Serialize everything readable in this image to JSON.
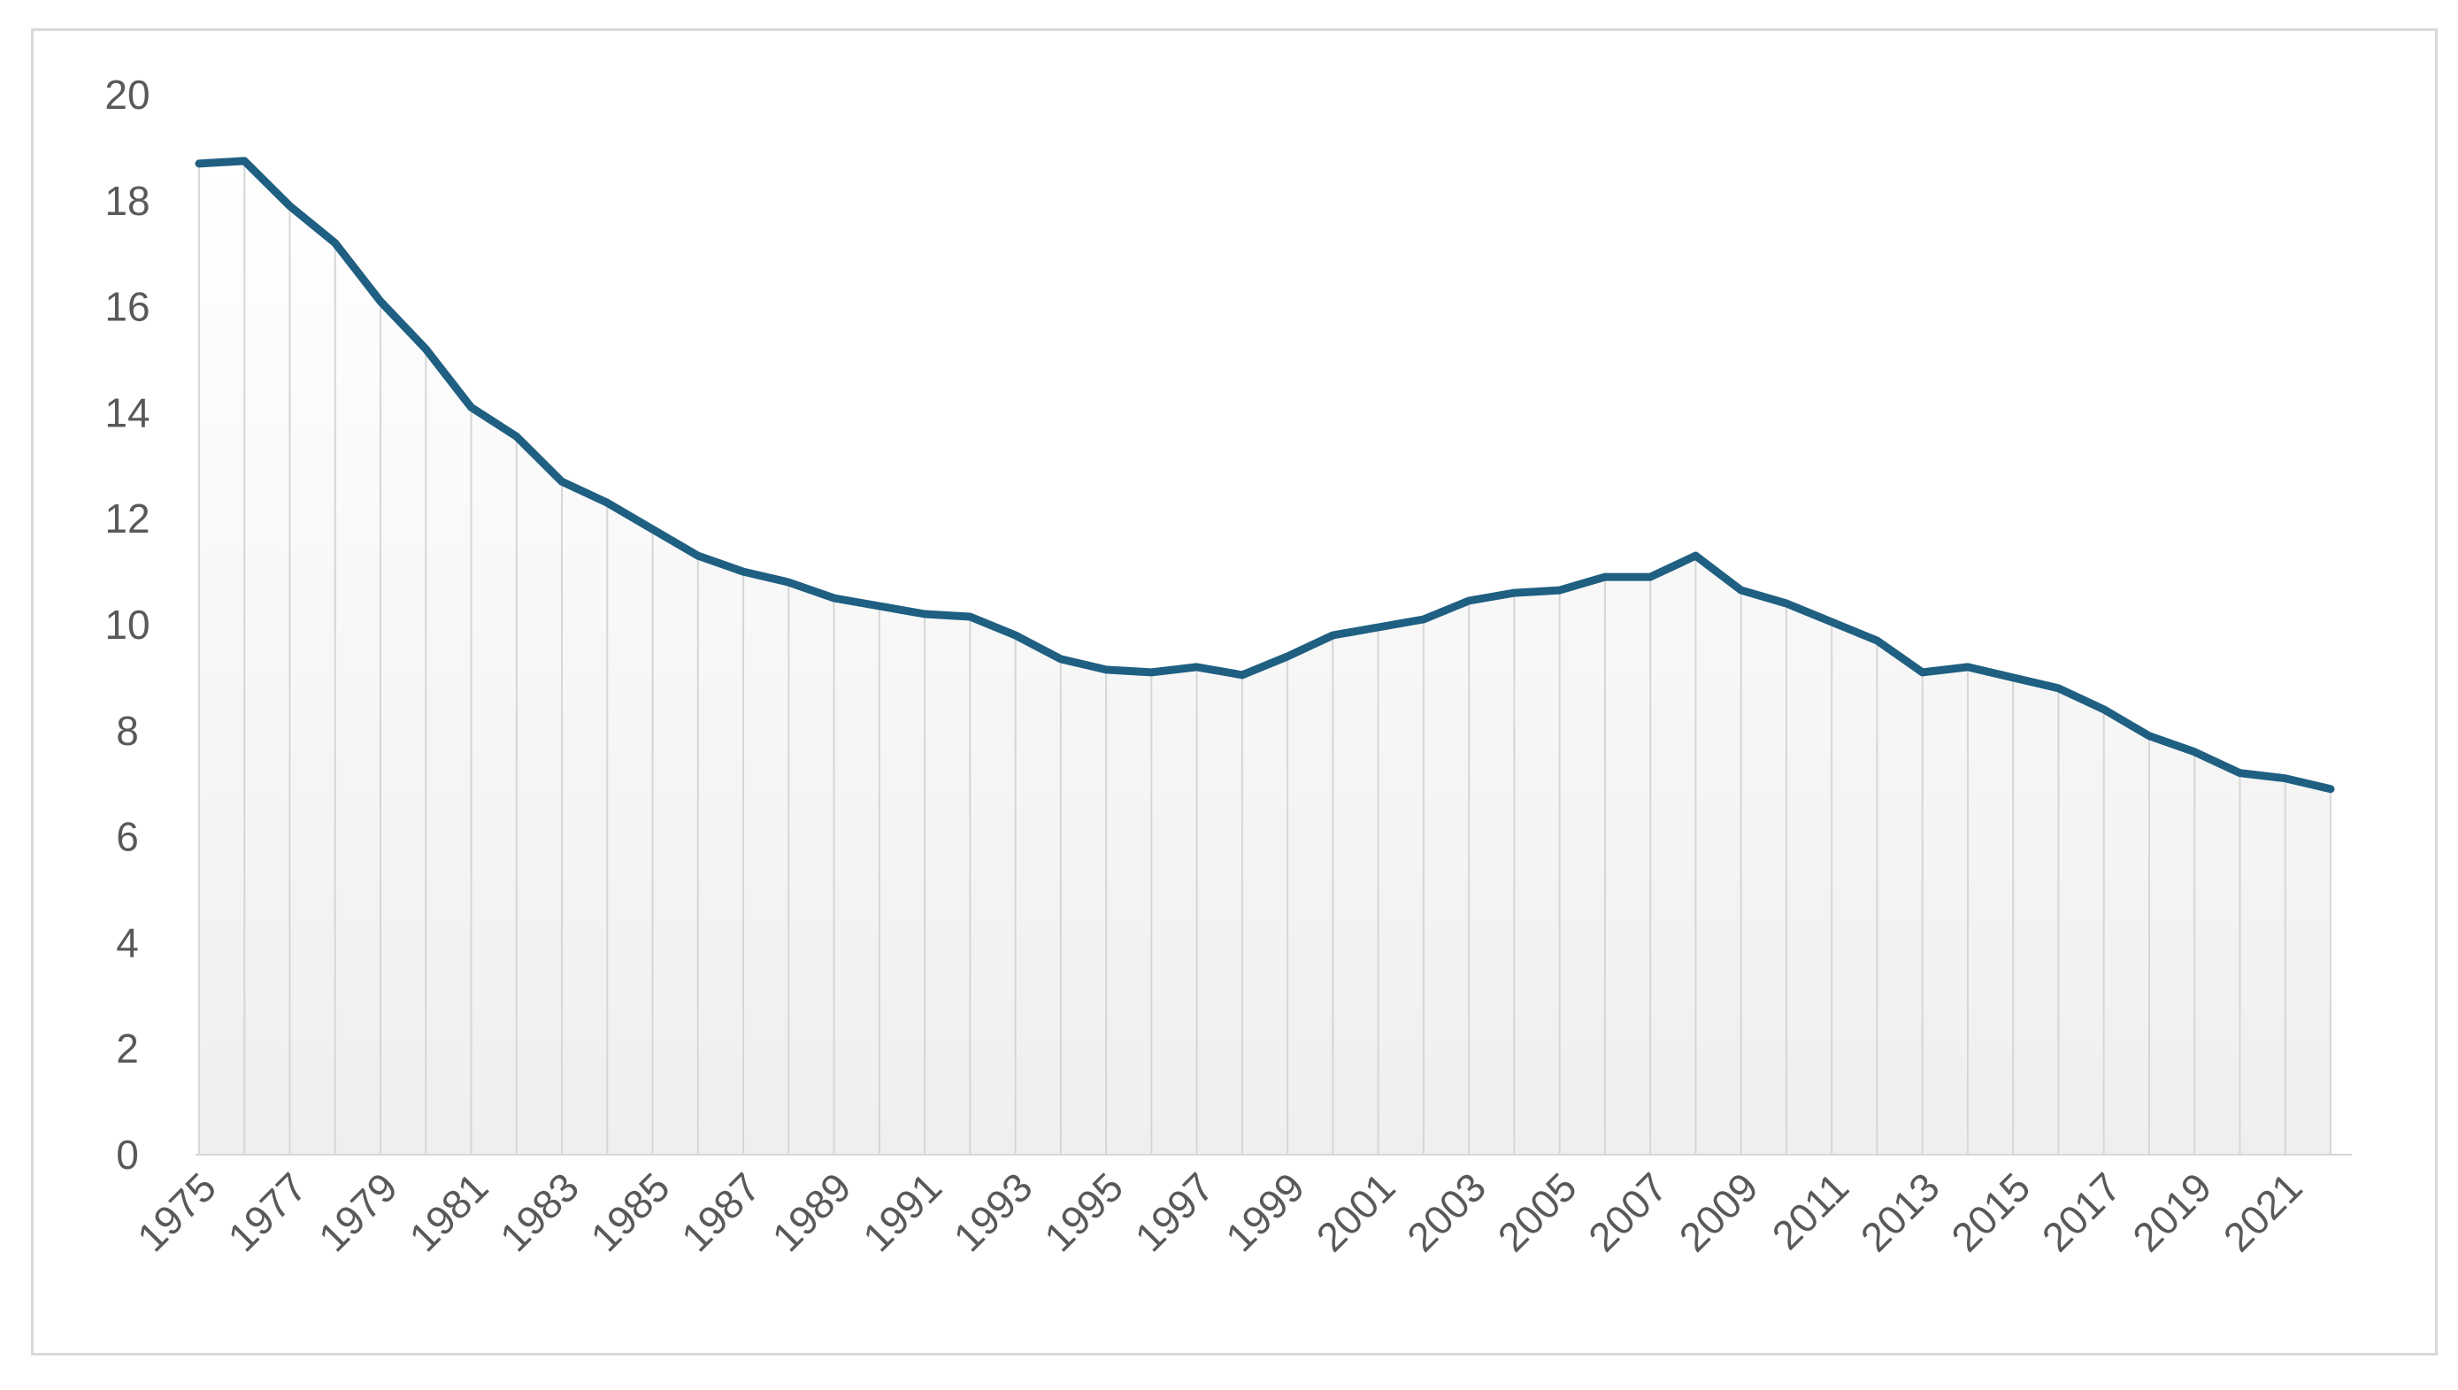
{
  "chart_data": {
    "type": "area",
    "title": "",
    "xlabel": "",
    "ylabel": "",
    "x": [
      1975,
      1976,
      1977,
      1978,
      1979,
      1980,
      1981,
      1982,
      1983,
      1984,
      1985,
      1986,
      1987,
      1988,
      1989,
      1990,
      1991,
      1992,
      1993,
      1994,
      1995,
      1996,
      1997,
      1998,
      1999,
      2000,
      2001,
      2002,
      2003,
      2004,
      2005,
      2006,
      2007,
      2008,
      2009,
      2010,
      2011,
      2012,
      2013,
      2014,
      2015,
      2016,
      2017,
      2018,
      2019,
      2020,
      2021,
      2022
    ],
    "x_tick_labels": [
      "1975",
      "1977",
      "1979",
      "1981",
      "1983",
      "1985",
      "1987",
      "1989",
      "1991",
      "1993",
      "1995",
      "1997",
      "1999",
      "2001",
      "2003",
      "2005",
      "2007",
      "2009",
      "2011",
      "2013",
      "2015",
      "2017",
      "2019",
      "2021"
    ],
    "y_ticks": [
      "0",
      "2",
      "4",
      "6",
      "8",
      "10",
      "12",
      "14",
      "16",
      "18",
      "20"
    ],
    "ylim": [
      0,
      20
    ],
    "series": [
      {
        "values": [
          18.7,
          18.75,
          17.9,
          17.2,
          16.1,
          15.2,
          14.1,
          13.55,
          12.7,
          12.3,
          11.8,
          11.3,
          11.0,
          10.8,
          10.5,
          10.35,
          10.2,
          10.15,
          9.8,
          9.35,
          9.15,
          9.1,
          9.2,
          9.05,
          9.4,
          9.8,
          9.95,
          10.1,
          10.45,
          10.6,
          10.65,
          10.9,
          10.9,
          11.3,
          10.65,
          10.4,
          10.05,
          9.7,
          9.1,
          9.2,
          9.0,
          8.8,
          8.4,
          7.9,
          7.6,
          7.2,
          7.1,
          6.9
        ]
      }
    ],
    "colors": {
      "line": "#1f5f82",
      "drop_lines": "#d6d6d6",
      "area_top": "#ffffff",
      "area_bottom": "#efefef",
      "tick_text": "#595959"
    },
    "grid": false,
    "legend": "none"
  }
}
